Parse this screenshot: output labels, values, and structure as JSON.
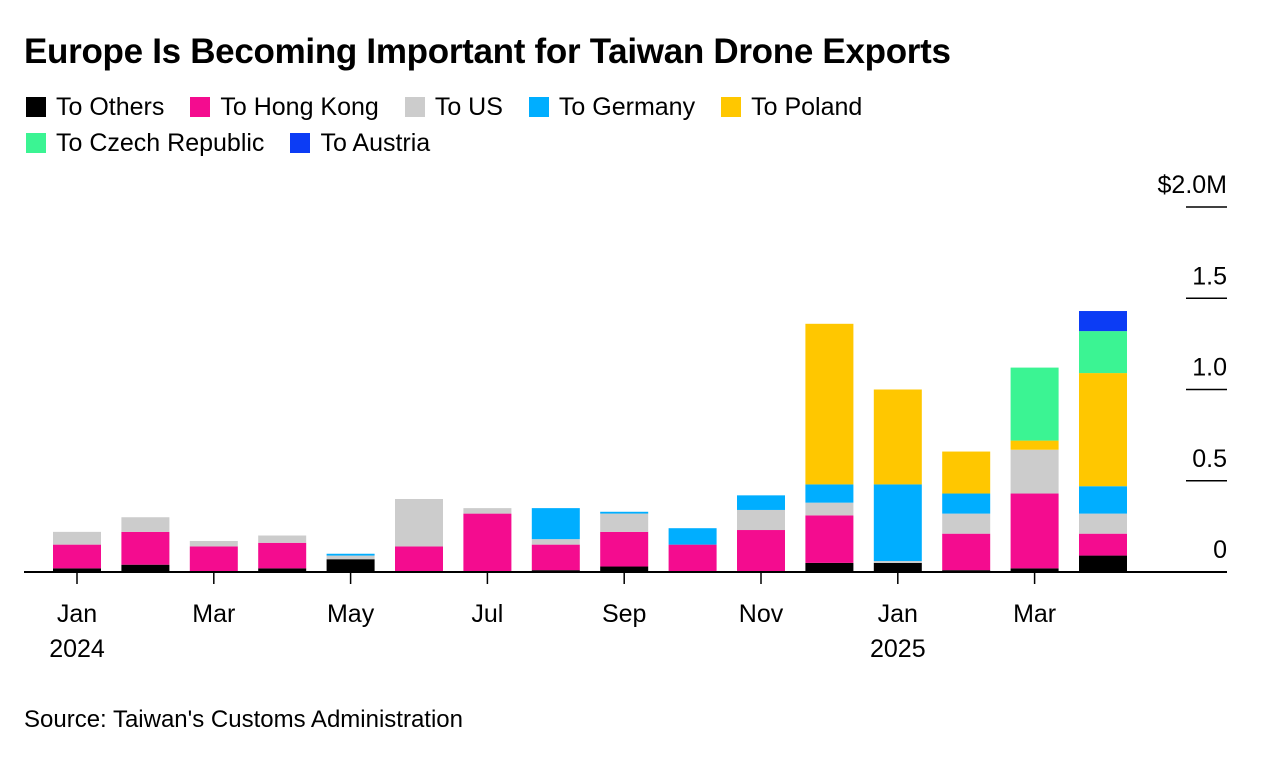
{
  "title": "Europe Is Becoming Important for Taiwan Drone Exports",
  "source": "Source: Taiwan's Customs Administration",
  "chart_data": {
    "type": "bar",
    "stacked": true,
    "title": "Europe Is Becoming Important for Taiwan Drone Exports",
    "ylabel": "",
    "ylim": [
      0,
      2.0
    ],
    "y_ticks": [
      {
        "value": 2.0,
        "label": "$2.0M"
      },
      {
        "value": 1.5,
        "label": "1.5"
      },
      {
        "value": 1.0,
        "label": "1.0"
      },
      {
        "value": 0.5,
        "label": "0.5"
      },
      {
        "value": 0,
        "label": "0"
      }
    ],
    "y_axis_side": "right",
    "grid": false,
    "legend_position": "top",
    "categories": [
      "Jan 2024",
      "Feb 2024",
      "Mar 2024",
      "Apr 2024",
      "May 2024",
      "Jun 2024",
      "Jul 2024",
      "Aug 2024",
      "Sep 2024",
      "Oct 2024",
      "Nov 2024",
      "Dec 2024",
      "Jan 2025",
      "Feb 2025",
      "Mar 2025",
      "Apr 2025"
    ],
    "x_ticks": [
      {
        "index": 0,
        "label": "Jan",
        "sublabel": "2024"
      },
      {
        "index": 2,
        "label": "Mar",
        "sublabel": ""
      },
      {
        "index": 4,
        "label": "May",
        "sublabel": ""
      },
      {
        "index": 6,
        "label": "Jul",
        "sublabel": ""
      },
      {
        "index": 8,
        "label": "Sep",
        "sublabel": ""
      },
      {
        "index": 10,
        "label": "Nov",
        "sublabel": ""
      },
      {
        "index": 12,
        "label": "Jan",
        "sublabel": "2025"
      },
      {
        "index": 14,
        "label": "Mar",
        "sublabel": ""
      }
    ],
    "series": [
      {
        "name": "To Others",
        "color": "#000000",
        "values": [
          0.02,
          0.04,
          0.0,
          0.02,
          0.07,
          0.0,
          0.0,
          0.01,
          0.03,
          0.0,
          0.0,
          0.05,
          0.05,
          0.01,
          0.02,
          0.09
        ]
      },
      {
        "name": "To Hong Kong",
        "color": "#f40c8f",
        "values": [
          0.13,
          0.18,
          0.14,
          0.14,
          0.0,
          0.14,
          0.32,
          0.14,
          0.19,
          0.15,
          0.23,
          0.26,
          0.0,
          0.2,
          0.41,
          0.12
        ]
      },
      {
        "name": "To US",
        "color": "#cccccc",
        "values": [
          0.07,
          0.08,
          0.03,
          0.04,
          0.02,
          0.26,
          0.03,
          0.03,
          0.1,
          0.0,
          0.11,
          0.07,
          0.01,
          0.11,
          0.24,
          0.11
        ]
      },
      {
        "name": "To Germany",
        "color": "#00aeff",
        "values": [
          0.0,
          0.0,
          0.0,
          0.0,
          0.01,
          0.0,
          0.0,
          0.17,
          0.01,
          0.09,
          0.08,
          0.1,
          0.42,
          0.11,
          0.0,
          0.15
        ]
      },
      {
        "name": "To Poland",
        "color": "#ffc700",
        "values": [
          0.0,
          0.0,
          0.0,
          0.0,
          0.0,
          0.0,
          0.0,
          0.0,
          0.0,
          0.0,
          0.0,
          0.88,
          0.52,
          0.23,
          0.05,
          0.62
        ]
      },
      {
        "name": "To Czech Republic",
        "color": "#3bf493",
        "values": [
          0.0,
          0.0,
          0.0,
          0.0,
          0.0,
          0.0,
          0.0,
          0.0,
          0.0,
          0.0,
          0.0,
          0.0,
          0.0,
          0.0,
          0.4,
          0.23
        ]
      },
      {
        "name": "To Austria",
        "color": "#0c3cf5",
        "values": [
          0.0,
          0.0,
          0.0,
          0.0,
          0.0,
          0.0,
          0.0,
          0.0,
          0.0,
          0.0,
          0.0,
          0.0,
          0.0,
          0.0,
          0.0,
          0.11
        ]
      }
    ]
  }
}
